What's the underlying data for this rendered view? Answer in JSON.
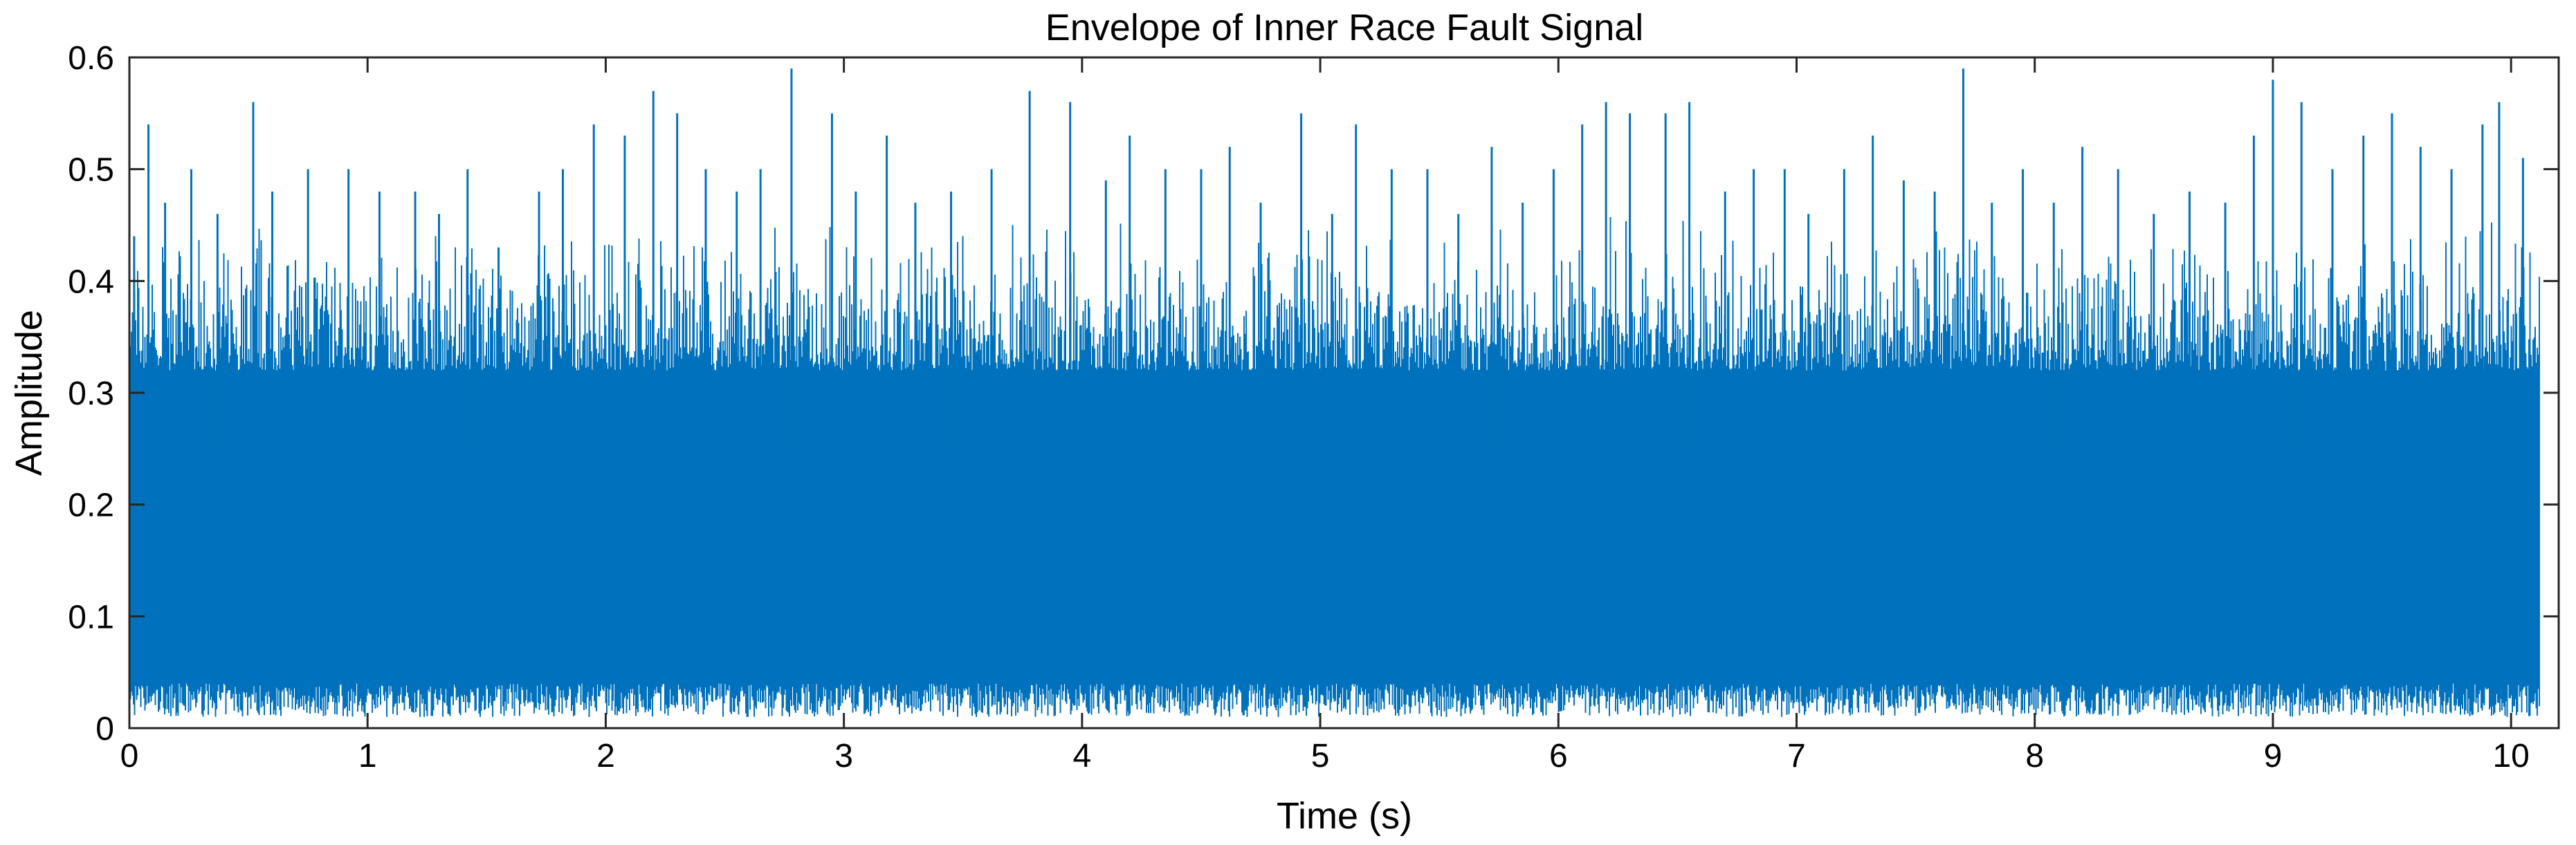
{
  "chart_data": {
    "type": "line",
    "title": "Envelope of Inner Race Fault Signal",
    "xlabel": "Time (s)",
    "ylabel": "Amplitude",
    "xlim": [
      0,
      10.2
    ],
    "ylim": [
      0,
      0.6
    ],
    "xticks": [
      0,
      1,
      2,
      3,
      4,
      5,
      6,
      7,
      8,
      9,
      10
    ],
    "xtick_labels": [
      "0",
      "1",
      "2",
      "3",
      "4",
      "5",
      "6",
      "7",
      "8",
      "9",
      "10"
    ],
    "yticks": [
      0,
      0.1,
      0.2,
      0.3,
      0.4,
      0.5,
      0.6
    ],
    "ytick_labels": [
      "0",
      "0.1",
      "0.2",
      "0.3",
      "0.4",
      "0.5",
      "0.6"
    ],
    "grid": false,
    "color": "#0072BD",
    "series": [
      {
        "x_start": 0,
        "x_end": 10.12,
        "dense_fill_lower": 0.01,
        "dense_fill_upper": 0.34,
        "peaks": [
          [
            0.02,
            0.44
          ],
          [
            0.08,
            0.54
          ],
          [
            0.15,
            0.47
          ],
          [
            0.26,
            0.5
          ],
          [
            0.37,
            0.46
          ],
          [
            0.52,
            0.56
          ],
          [
            0.6,
            0.48
          ],
          [
            0.75,
            0.5
          ],
          [
            0.92,
            0.5
          ],
          [
            1.05,
            0.48
          ],
          [
            1.2,
            0.48
          ],
          [
            1.3,
            0.46
          ],
          [
            1.42,
            0.5
          ],
          [
            1.55,
            0.43
          ],
          [
            1.72,
            0.48
          ],
          [
            1.82,
            0.5
          ],
          [
            1.95,
            0.54
          ],
          [
            2.08,
            0.53
          ],
          [
            2.2,
            0.57
          ],
          [
            2.3,
            0.55
          ],
          [
            2.42,
            0.5
          ],
          [
            2.55,
            0.48
          ],
          [
            2.65,
            0.5
          ],
          [
            2.78,
            0.59
          ],
          [
            2.95,
            0.55
          ],
          [
            3.05,
            0.48
          ],
          [
            3.18,
            0.53
          ],
          [
            3.3,
            0.47
          ],
          [
            3.45,
            0.48
          ],
          [
            3.62,
            0.5
          ],
          [
            3.78,
            0.57
          ],
          [
            3.95,
            0.56
          ],
          [
            4.1,
            0.49
          ],
          [
            4.2,
            0.53
          ],
          [
            4.35,
            0.5
          ],
          [
            4.5,
            0.5
          ],
          [
            4.62,
            0.52
          ],
          [
            4.75,
            0.47
          ],
          [
            4.92,
            0.55
          ],
          [
            5.05,
            0.46
          ],
          [
            5.15,
            0.54
          ],
          [
            5.3,
            0.5
          ],
          [
            5.45,
            0.5
          ],
          [
            5.58,
            0.46
          ],
          [
            5.72,
            0.52
          ],
          [
            5.85,
            0.47
          ],
          [
            5.98,
            0.5
          ],
          [
            6.1,
            0.54
          ],
          [
            6.2,
            0.56
          ],
          [
            6.3,
            0.55
          ],
          [
            6.45,
            0.55
          ],
          [
            6.55,
            0.56
          ],
          [
            6.7,
            0.48
          ],
          [
            6.82,
            0.5
          ],
          [
            6.95,
            0.5
          ],
          [
            7.05,
            0.46
          ],
          [
            7.2,
            0.5
          ],
          [
            7.32,
            0.53
          ],
          [
            7.45,
            0.49
          ],
          [
            7.58,
            0.48
          ],
          [
            7.7,
            0.59
          ],
          [
            7.82,
            0.47
          ],
          [
            7.95,
            0.5
          ],
          [
            8.08,
            0.47
          ],
          [
            8.2,
            0.52
          ],
          [
            8.35,
            0.5
          ],
          [
            8.5,
            0.46
          ],
          [
            8.65,
            0.48
          ],
          [
            8.8,
            0.47
          ],
          [
            8.92,
            0.53
          ],
          [
            9.0,
            0.58
          ],
          [
            9.12,
            0.56
          ],
          [
            9.25,
            0.5
          ],
          [
            9.38,
            0.53
          ],
          [
            9.5,
            0.55
          ],
          [
            9.62,
            0.52
          ],
          [
            9.75,
            0.5
          ],
          [
            9.88,
            0.54
          ],
          [
            9.95,
            0.56
          ],
          [
            10.05,
            0.51
          ]
        ]
      }
    ]
  }
}
